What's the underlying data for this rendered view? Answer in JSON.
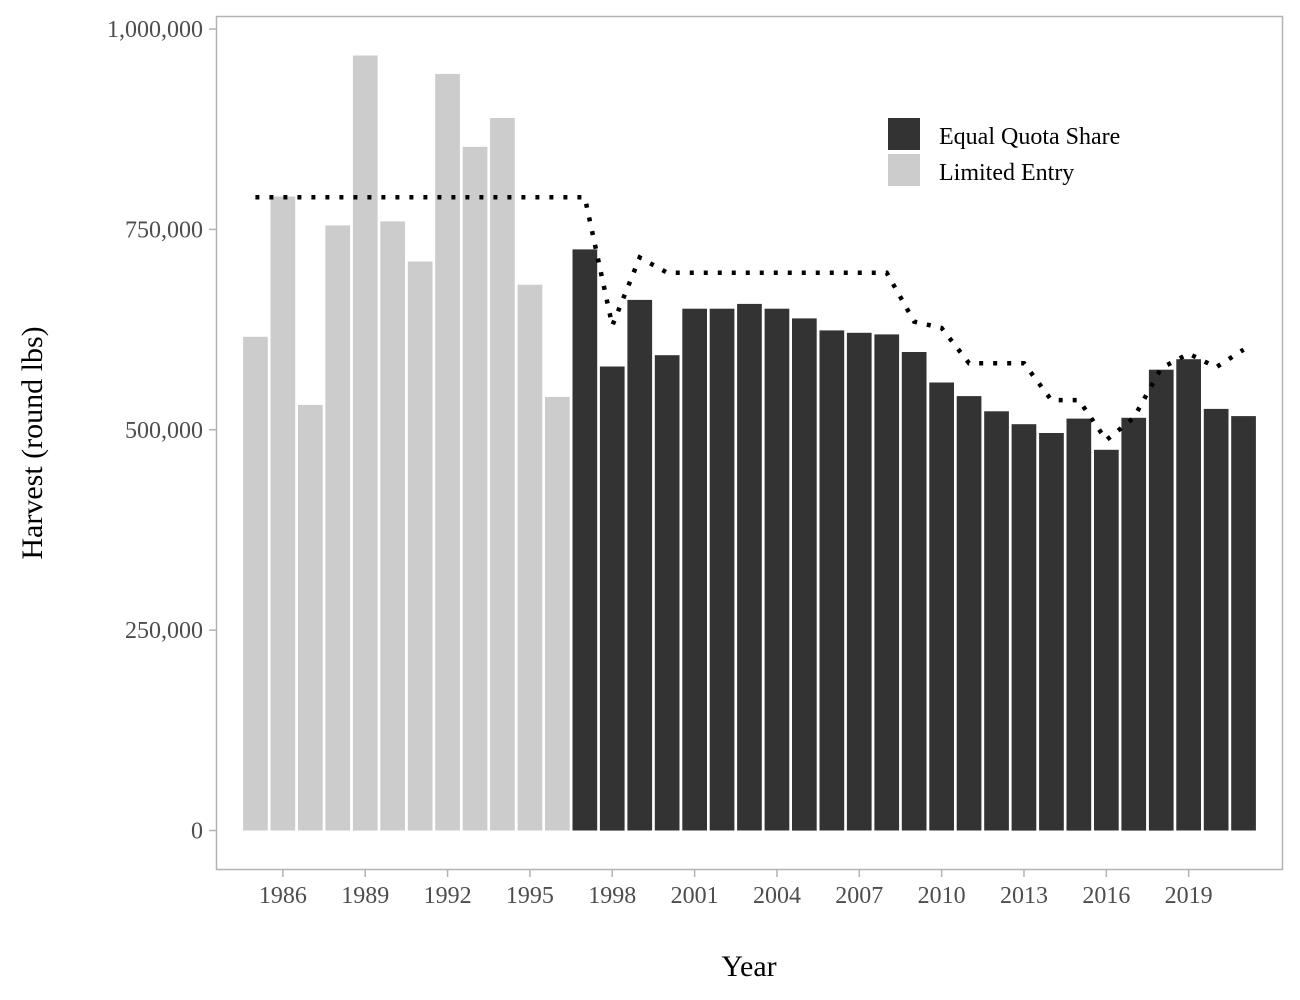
{
  "chart_data": {
    "type": "bar",
    "xlabel": "Year",
    "ylabel": "Harvest (round lbs)",
    "x_range": [
      1983.6,
      2022.4
    ],
    "ylim": [
      -48000,
      1015000
    ],
    "y_ticks": [
      {
        "value": 0,
        "label": "0"
      },
      {
        "value": 250000,
        "label": "250,000"
      },
      {
        "value": 500000,
        "label": "500,000"
      },
      {
        "value": 750000,
        "label": "750,000"
      },
      {
        "value": 1000000,
        "label": "1,000,000"
      }
    ],
    "x_ticks": [
      {
        "value": 1986,
        "label": "1986"
      },
      {
        "value": 1989,
        "label": "1989"
      },
      {
        "value": 1992,
        "label": "1992"
      },
      {
        "value": 1995,
        "label": "1995"
      },
      {
        "value": 1998,
        "label": "1998"
      },
      {
        "value": 2001,
        "label": "2001"
      },
      {
        "value": 2004,
        "label": "2004"
      },
      {
        "value": 2007,
        "label": "2007"
      },
      {
        "value": 2010,
        "label": "2010"
      },
      {
        "value": 2013,
        "label": "2013"
      },
      {
        "value": 2016,
        "label": "2016"
      },
      {
        "value": 2019,
        "label": "2019"
      }
    ],
    "legend_position": "top-right",
    "grid": false,
    "series": [
      {
        "name": "Limited Entry",
        "color": "#cccccc",
        "x": [
          1985,
          1986,
          1987,
          1988,
          1989,
          1990,
          1991,
          1992,
          1993,
          1994,
          1995,
          1996
        ],
        "values": [
          616000,
          791000,
          531000,
          755000,
          967000,
          760000,
          710000,
          944000,
          853000,
          889000,
          681000,
          541000
        ]
      },
      {
        "name": "Equal Quota Share",
        "color": "#333333",
        "x": [
          1997,
          1998,
          1999,
          2000,
          2001,
          2002,
          2003,
          2004,
          2005,
          2006,
          2007,
          2008,
          2009,
          2010,
          2011,
          2012,
          2013,
          2014,
          2015,
          2016,
          2017,
          2018,
          2019,
          2020,
          2021
        ],
        "values": [
          725000,
          579000,
          662000,
          593000,
          651000,
          651000,
          657000,
          651000,
          639000,
          624000,
          621000,
          619000,
          597000,
          559000,
          542000,
          523000,
          507000,
          496000,
          514000,
          475000,
          515000,
          575000,
          588000,
          526000,
          517000
        ]
      }
    ],
    "quota_line": {
      "style": "dotted",
      "color": "#000000",
      "x": [
        1985,
        1986,
        1987,
        1988,
        1989,
        1990,
        1991,
        1992,
        1993,
        1994,
        1995,
        1996,
        1997,
        1998,
        1999,
        2000,
        2001,
        2002,
        2003,
        2004,
        2005,
        2006,
        2007,
        2008,
        2009,
        2010,
        2011,
        2012,
        2013,
        2014,
        2015,
        2016,
        2017,
        2018,
        2019,
        2020,
        2021
      ],
      "values": [
        790000,
        790000,
        790000,
        790000,
        790000,
        790000,
        790000,
        790000,
        790000,
        790000,
        790000,
        790000,
        790000,
        630000,
        715000,
        696000,
        696000,
        696000,
        696000,
        696000,
        696000,
        696000,
        696000,
        696000,
        635000,
        627000,
        583000,
        583000,
        583000,
        537000,
        537000,
        487000,
        515000,
        577000,
        595000,
        578000,
        600000
      ]
    }
  }
}
